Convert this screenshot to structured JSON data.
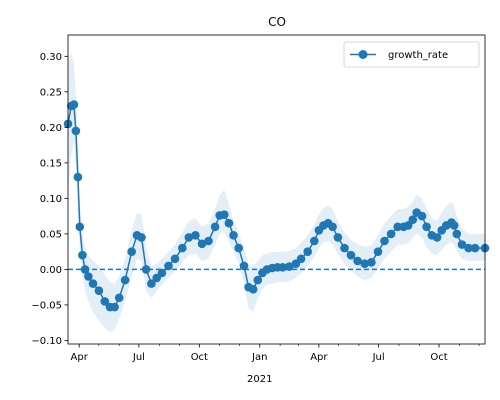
{
  "chart_data": {
    "type": "line",
    "title": "CO",
    "xlabel": "",
    "ylabel": "",
    "x_range": [
      "2020-03-15",
      "2021-12-10"
    ],
    "ylim": [
      -0.105,
      0.33
    ],
    "grid": false,
    "legend": {
      "placement": "top-right",
      "entries": [
        "growth_rate"
      ]
    },
    "colors": {
      "line": "#1f77b4",
      "band": "#1f77b4",
      "zero_line": "#1f77b4"
    },
    "reference_line": {
      "y": 0.0,
      "style": "dashed"
    },
    "y_ticks": [
      -0.1,
      -0.05,
      0.0,
      0.05,
      0.1,
      0.15,
      0.2,
      0.25,
      0.3
    ],
    "y_tick_labels": [
      "−0.10",
      "−0.05",
      "0.00",
      "0.05",
      "0.10",
      "0.15",
      "0.20",
      "0.25",
      "0.30"
    ],
    "x_ticks": [
      "2020-04-01",
      "2020-07-01",
      "2020-10-01",
      "2021-01-01",
      "2021-04-01",
      "2021-07-01",
      "2021-10-01"
    ],
    "x_tick_labels": [
      "Apr",
      "Jul",
      "Oct",
      "Jan",
      "Apr",
      "Jul",
      "Oct"
    ],
    "x_sublabel": {
      "text": "2021",
      "under": "2021-01-01"
    },
    "series": [
      {
        "name": "growth_rate",
        "marker": "circle",
        "x": [
          "2020-03-15",
          "2020-03-20",
          "2020-03-24",
          "2020-03-27",
          "2020-03-30",
          "2020-04-02",
          "2020-04-06",
          "2020-04-10",
          "2020-04-15",
          "2020-04-22",
          "2020-05-01",
          "2020-05-10",
          "2020-05-18",
          "2020-05-25",
          "2020-06-01",
          "2020-06-10",
          "2020-06-20",
          "2020-06-28",
          "2020-07-05",
          "2020-07-12",
          "2020-07-20",
          "2020-07-28",
          "2020-08-05",
          "2020-08-15",
          "2020-08-25",
          "2020-09-05",
          "2020-09-15",
          "2020-09-25",
          "2020-10-05",
          "2020-10-15",
          "2020-10-25",
          "2020-11-01",
          "2020-11-08",
          "2020-11-15",
          "2020-11-22",
          "2020-11-30",
          "2020-12-08",
          "2020-12-15",
          "2020-12-22",
          "2020-12-29",
          "2021-01-05",
          "2021-01-12",
          "2021-01-20",
          "2021-01-28",
          "2021-02-05",
          "2021-02-15",
          "2021-02-25",
          "2021-03-05",
          "2021-03-15",
          "2021-03-25",
          "2021-04-01",
          "2021-04-08",
          "2021-04-15",
          "2021-04-22",
          "2021-04-30",
          "2021-05-10",
          "2021-05-20",
          "2021-05-30",
          "2021-06-10",
          "2021-06-20",
          "2021-06-30",
          "2021-07-10",
          "2021-07-20",
          "2021-07-30",
          "2021-08-08",
          "2021-08-15",
          "2021-08-22",
          "2021-08-28",
          "2021-09-05",
          "2021-09-12",
          "2021-09-20",
          "2021-09-28",
          "2021-10-05",
          "2021-10-12",
          "2021-10-20",
          "2021-10-24",
          "2021-10-28",
          "2021-11-05",
          "2021-11-15",
          "2021-11-25",
          "2021-12-10"
        ],
        "y": [
          0.205,
          0.23,
          0.232,
          0.195,
          0.13,
          0.06,
          0.02,
          0.0,
          -0.01,
          -0.02,
          -0.03,
          -0.045,
          -0.053,
          -0.053,
          -0.04,
          -0.015,
          0.025,
          0.048,
          0.045,
          0.0,
          -0.02,
          -0.012,
          -0.005,
          0.005,
          0.015,
          0.03,
          0.045,
          0.048,
          0.036,
          0.04,
          0.06,
          0.076,
          0.077,
          0.065,
          0.048,
          0.03,
          0.005,
          -0.025,
          -0.028,
          -0.015,
          -0.005,
          0.0,
          0.002,
          0.003,
          0.003,
          0.004,
          0.008,
          0.015,
          0.025,
          0.04,
          0.055,
          0.062,
          0.065,
          0.06,
          0.045,
          0.03,
          0.02,
          0.012,
          0.008,
          0.01,
          0.025,
          0.04,
          0.05,
          0.06,
          0.06,
          0.062,
          0.07,
          0.08,
          0.075,
          0.06,
          0.048,
          0.045,
          0.055,
          0.062,
          0.066,
          0.062,
          0.05,
          0.035,
          0.03,
          0.03,
          0.03
        ],
        "lower": [
          0.11,
          0.16,
          0.18,
          0.15,
          0.09,
          0.03,
          -0.01,
          -0.03,
          -0.045,
          -0.06,
          -0.072,
          -0.082,
          -0.088,
          -0.085,
          -0.07,
          -0.045,
          -0.01,
          0.015,
          0.012,
          -0.03,
          -0.04,
          -0.03,
          -0.022,
          -0.012,
          -0.002,
          0.01,
          0.02,
          0.022,
          0.012,
          0.015,
          0.035,
          0.05,
          0.052,
          0.04,
          0.025,
          0.008,
          -0.02,
          -0.055,
          -0.06,
          -0.04,
          -0.028,
          -0.022,
          -0.02,
          -0.018,
          -0.018,
          -0.017,
          -0.012,
          -0.005,
          0.005,
          0.018,
          0.03,
          0.038,
          0.04,
          0.035,
          0.022,
          0.008,
          -0.002,
          -0.01,
          -0.015,
          -0.012,
          0.002,
          0.015,
          0.025,
          0.035,
          0.035,
          0.037,
          0.045,
          0.05,
          0.045,
          0.032,
          0.022,
          0.02,
          0.028,
          0.035,
          0.038,
          0.035,
          0.025,
          0.015,
          0.012,
          0.012,
          0.012
        ],
        "upper": [
          0.29,
          0.305,
          0.29,
          0.245,
          0.17,
          0.095,
          0.05,
          0.03,
          0.02,
          0.012,
          0.005,
          -0.008,
          -0.018,
          -0.02,
          -0.01,
          0.015,
          0.055,
          0.08,
          0.078,
          0.03,
          0.005,
          0.008,
          0.015,
          0.025,
          0.035,
          0.052,
          0.068,
          0.072,
          0.06,
          0.065,
          0.085,
          0.105,
          0.112,
          0.092,
          0.07,
          0.052,
          0.03,
          0.005,
          0.005,
          0.012,
          0.02,
          0.022,
          0.024,
          0.025,
          0.025,
          0.026,
          0.03,
          0.037,
          0.048,
          0.063,
          0.078,
          0.086,
          0.09,
          0.085,
          0.068,
          0.052,
          0.042,
          0.035,
          0.032,
          0.034,
          0.048,
          0.065,
          0.075,
          0.085,
          0.085,
          0.088,
          0.095,
          0.105,
          0.1,
          0.085,
          0.072,
          0.068,
          0.08,
          0.09,
          0.095,
          0.09,
          0.075,
          0.058,
          0.05,
          0.05,
          0.05
        ]
      }
    ]
  }
}
